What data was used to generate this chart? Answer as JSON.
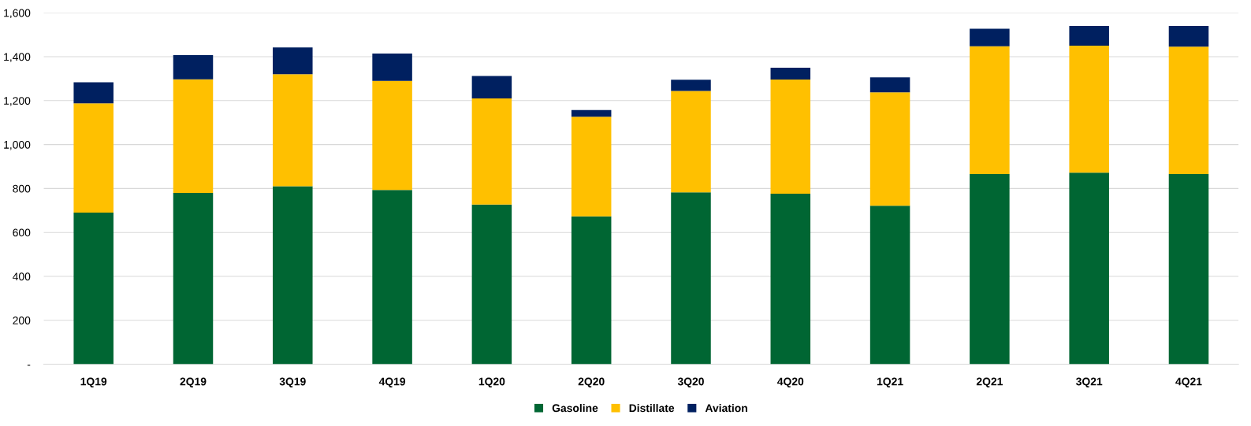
{
  "chart_data": {
    "type": "bar",
    "stacked": true,
    "categories": [
      "1Q19",
      "2Q19",
      "3Q19",
      "4Q19",
      "1Q20",
      "2Q20",
      "3Q20",
      "4Q20",
      "1Q21",
      "2Q21",
      "3Q21",
      "4Q21"
    ],
    "series": [
      {
        "name": "Gasoline",
        "color": "#006633",
        "values": [
          690,
          780,
          810,
          793,
          727,
          673,
          783,
          776,
          722,
          866,
          872,
          866
        ]
      },
      {
        "name": "Distillate",
        "color": "#ffc000",
        "values": [
          498,
          517,
          510,
          497,
          483,
          454,
          461,
          520,
          516,
          582,
          578,
          580
        ]
      },
      {
        "name": "Aviation",
        "color": "#002060",
        "values": [
          96,
          110,
          122,
          124,
          102,
          30,
          51,
          54,
          68,
          79,
          90,
          94
        ]
      }
    ],
    "ylim": [
      0,
      1600
    ],
    "yticks": [
      {
        "value": 0,
        "label": "-"
      },
      {
        "value": 200,
        "label": "200"
      },
      {
        "value": 400,
        "label": "400"
      },
      {
        "value": 600,
        "label": "600"
      },
      {
        "value": 800,
        "label": "800"
      },
      {
        "value": 1000,
        "label": "1,000"
      },
      {
        "value": 1200,
        "label": "1,200"
      },
      {
        "value": 1400,
        "label": "1,400"
      },
      {
        "value": 1600,
        "label": "1,600"
      }
    ],
    "grid": "y",
    "legend": "bottom"
  }
}
